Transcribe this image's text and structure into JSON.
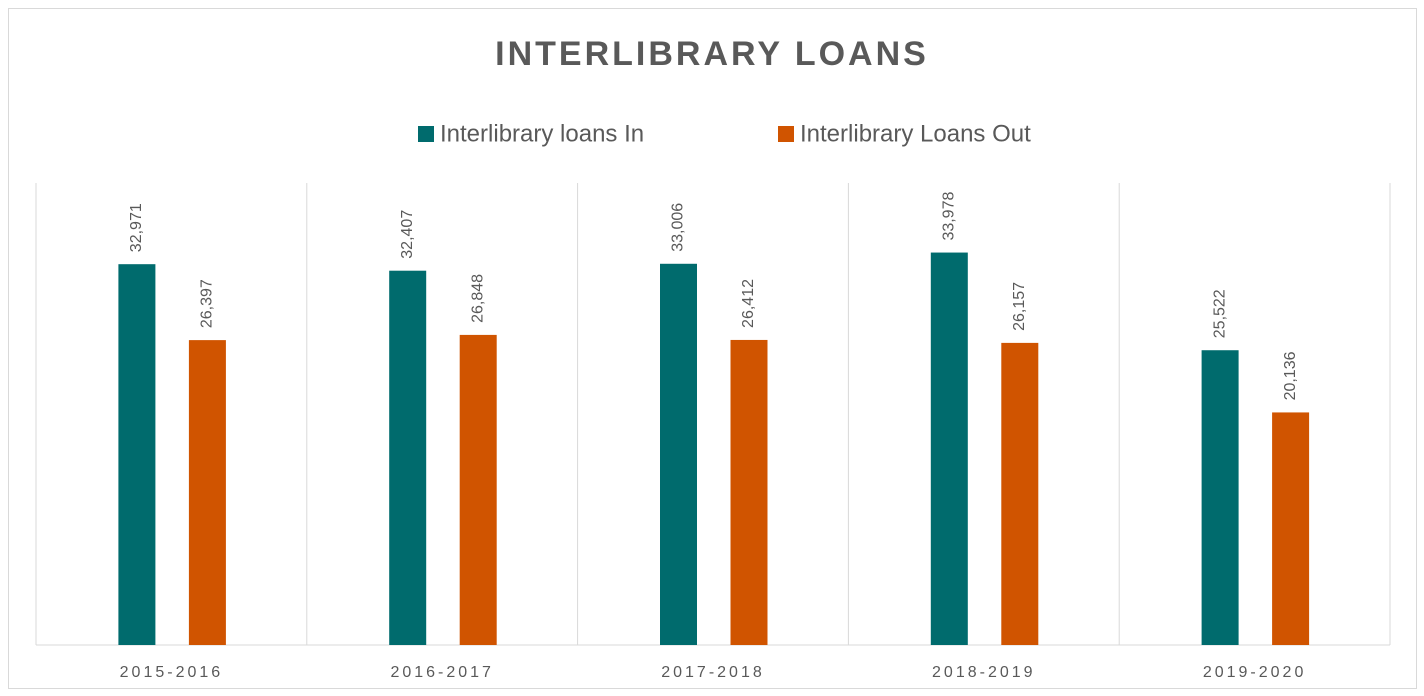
{
  "chart_data": {
    "type": "bar",
    "title": "INTERLIBRARY LOANS",
    "categories": [
      "2015-2016",
      "2016-2017",
      "2017-2018",
      "2018-2019",
      "2019-2020"
    ],
    "series": [
      {
        "name": "Interlibrary loans In",
        "color": "#006b6d",
        "values": [
          32971,
          32407,
          33006,
          33978,
          25522
        ],
        "value_labels": [
          "32,971",
          "32,407",
          "33,006",
          "33,978",
          "25,522"
        ]
      },
      {
        "name": "Interlibrary Loans Out",
        "color": "#d05400",
        "values": [
          26397,
          26848,
          26412,
          26157,
          20136
        ],
        "value_labels": [
          "26,397",
          "26,848",
          "26,412",
          "26,157",
          "20,136"
        ]
      }
    ],
    "ylim": [
      0,
      40000
    ],
    "legend": "top"
  }
}
